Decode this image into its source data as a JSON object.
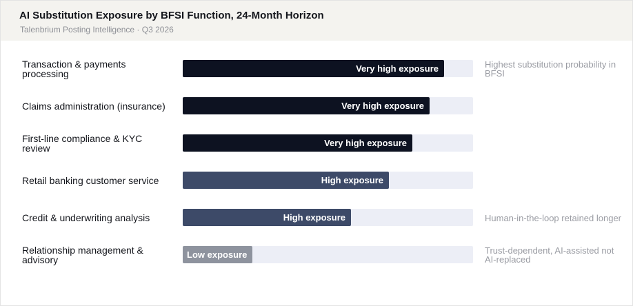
{
  "header": {
    "title": "AI Substitution Exposure by BFSI Function, 24-Month Horizon",
    "subtitle": "Talenbrium Posting Intelligence · Q3 2026"
  },
  "colors": {
    "very_high": "#0d1221",
    "high": "#3d4a68",
    "low": "#8e939e",
    "track": "#eceef6"
  },
  "chart_data": {
    "type": "bar",
    "orientation": "horizontal",
    "title": "AI Substitution Exposure by BFSI Function, 24-Month Horizon",
    "subtitle": "Talenbrium Posting Intelligence · Q3 2026",
    "xlim": [
      0,
      100
    ],
    "grid": false,
    "categories": [
      "Transaction & payments processing",
      "Claims administration (insurance)",
      "First-line compliance & KYC review",
      "Retail banking customer service",
      "Credit & underwriting analysis",
      "Relationship management & advisory"
    ],
    "values": [
      90,
      85,
      79,
      71,
      58,
      24
    ],
    "tiers": [
      "very_high",
      "very_high",
      "very_high",
      "high",
      "high",
      "low"
    ],
    "bar_labels": [
      "Very high exposure",
      "Very high exposure",
      "Very high exposure",
      "High exposure",
      "High exposure",
      "Low exposure"
    ],
    "annotations": [
      "Highest substitution probability in BFSI",
      "",
      "",
      "",
      "Human-in-the-loop retained longer",
      "Trust-dependent, AI-assisted not AI-replaced"
    ]
  }
}
